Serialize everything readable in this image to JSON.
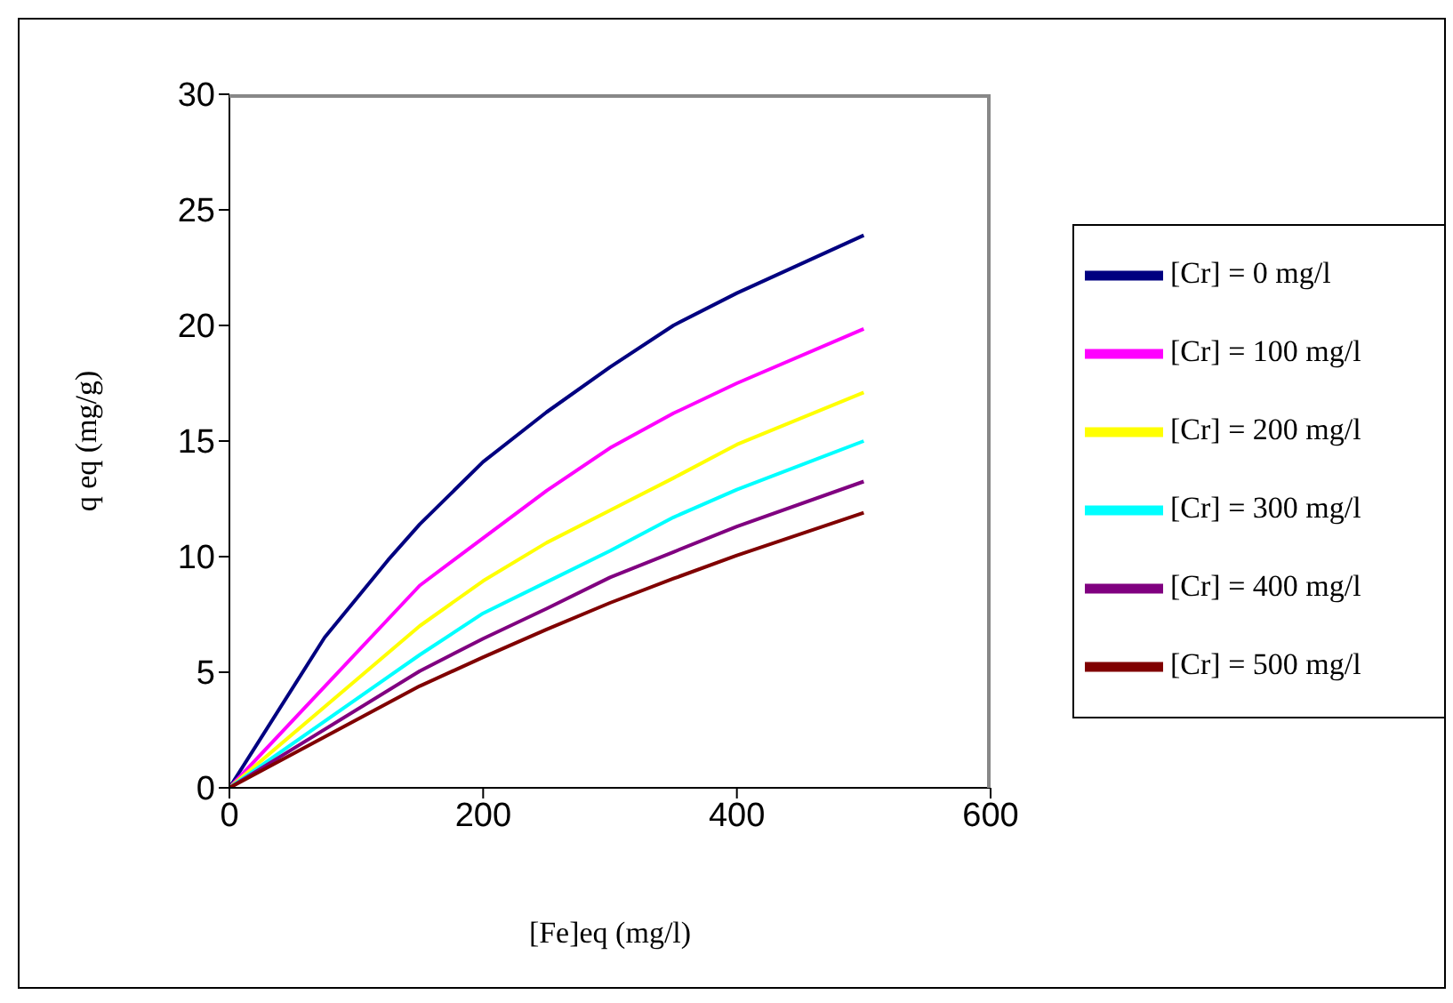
{
  "chart_data": {
    "type": "line",
    "xlabel": "[Fe]eq (mg/l)",
    "ylabel": "q eq (mg/g)",
    "xlim": [
      0,
      600
    ],
    "xticks": [
      0,
      200,
      400,
      600
    ],
    "ylim": [
      0,
      30
    ],
    "yticks": [
      0,
      5,
      10,
      15,
      20,
      25,
      30
    ],
    "grid": false,
    "legend": "right",
    "marker": "none",
    "series": [
      {
        "name": "[Cr] = 0 mg/l",
        "color": "#000080",
        "x": [
          0,
          75,
          125,
          150,
          200,
          250,
          300,
          350,
          400,
          500
        ],
        "values": [
          0,
          6.5,
          9.85,
          11.4,
          14.1,
          16.25,
          18.2,
          20.0,
          21.4,
          23.9
        ]
      },
      {
        "name": "[Cr] = 100 mg/l",
        "color": "#ff00ff",
        "x": [
          0,
          150,
          200,
          250,
          300,
          350,
          400,
          500
        ],
        "values": [
          0,
          8.75,
          10.8,
          12.85,
          14.7,
          16.2,
          17.5,
          19.85
        ]
      },
      {
        "name": "[Cr] = 200 mg/l",
        "color": "#ffff00",
        "x": [
          0,
          150,
          200,
          250,
          300,
          350,
          400,
          500
        ],
        "values": [
          0,
          7.0,
          8.95,
          10.6,
          12.0,
          13.4,
          14.85,
          17.1
        ]
      },
      {
        "name": "[Cr] = 300 mg/l",
        "color": "#00ffff",
        "x": [
          0,
          150,
          200,
          250,
          300,
          350,
          400,
          500
        ],
        "values": [
          0,
          5.75,
          7.55,
          8.9,
          10.25,
          11.7,
          12.9,
          15.0
        ]
      },
      {
        "name": "[Cr] = 400 mg/l",
        "color": "#800080",
        "x": [
          0,
          150,
          200,
          250,
          300,
          350,
          400,
          500
        ],
        "values": [
          0,
          5.05,
          6.45,
          7.75,
          9.1,
          10.2,
          11.3,
          13.25
        ]
      },
      {
        "name": "[Cr] = 500 mg/l",
        "color": "#800000",
        "x": [
          0,
          150,
          200,
          250,
          300,
          350,
          400,
          500
        ],
        "values": [
          0,
          4.4,
          5.65,
          6.85,
          8.0,
          9.05,
          10.05,
          11.9
        ]
      }
    ]
  }
}
